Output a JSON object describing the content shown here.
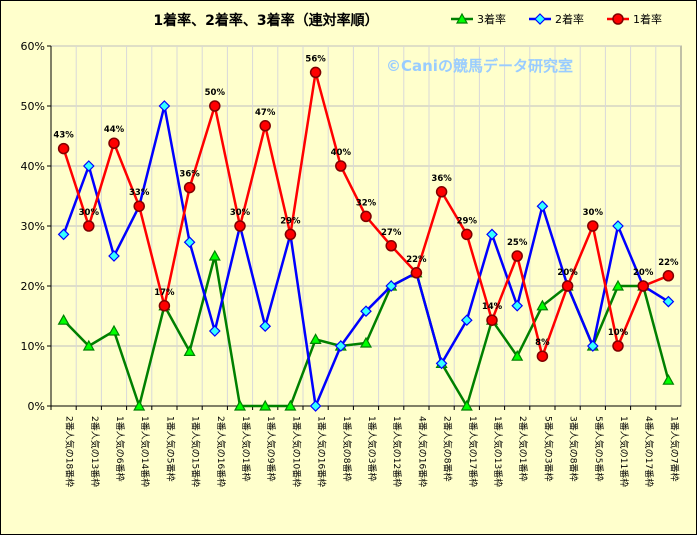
{
  "chart_data": {
    "type": "line",
    "title": "1着率、2着率、3着率（連対率順）",
    "watermark": "©Caniの競馬データ研究室",
    "ylim": [
      0,
      60
    ],
    "yticks": [
      "0%",
      "10%",
      "20%",
      "30%",
      "40%",
      "50%",
      "60%"
    ],
    "grid": true,
    "legend_position": "top-right",
    "categories": [
      "2番人気の18番枠",
      "2番人気の13番枠",
      "1番人気の6番枠",
      "1番人気の14番枠",
      "1番人気の5番枠",
      "1番人気の15番枠",
      "2番人気の16番枠",
      "1番人気の1番枠",
      "1番人気の9番枠",
      "1番人気の10番枠",
      "1番人気の16番枠",
      "1番人気の8番枠",
      "1番人気の3番枠",
      "1番人気の12番枠",
      "4番人気の16番枠",
      "2番人気の8番枠",
      "1番人気の17番枠",
      "1番人気の13番枠",
      "2番人気の1番枠",
      "5番人気の3番枠",
      "3番人気の8番枠",
      "5番人気の5番枠",
      "1番人気の11番枠",
      "4番人気の17番枠",
      "1番人気の7番枠"
    ],
    "series": [
      {
        "name": "3着率",
        "color": "#008000",
        "marker_color": "#00ff00",
        "marker": "triangle",
        "values": [
          14.3,
          10,
          12.5,
          0,
          16.7,
          9.1,
          25,
          0,
          0,
          0,
          11.1,
          10,
          10.5,
          20,
          22.2,
          7.1,
          0,
          14.3,
          8.3,
          16.7,
          20,
          10,
          20,
          20,
          4.3
        ]
      },
      {
        "name": "2着率",
        "color": "#0000ff",
        "marker_color": "#33ffff",
        "marker": "diamond",
        "values": [
          28.6,
          40,
          25,
          33.3,
          50,
          27.3,
          12.5,
          30,
          13.3,
          28.6,
          0,
          10,
          15.8,
          20,
          22.2,
          7.1,
          14.3,
          28.6,
          16.7,
          33.3,
          20,
          10,
          30,
          20,
          17.4
        ]
      },
      {
        "name": "1着率",
        "color": "#ff0000",
        "marker_color": "#ff0000",
        "marker": "circle",
        "values": [
          42.9,
          30,
          43.8,
          33.3,
          16.7,
          36.4,
          50,
          30,
          46.7,
          28.6,
          55.6,
          40,
          31.6,
          26.7,
          22.2,
          35.7,
          28.6,
          14.3,
          25,
          8.3,
          20,
          30,
          10,
          20,
          21.7
        ],
        "labels": [
          "43%",
          "30%",
          "44%",
          "33%",
          "17%",
          "36%",
          "50%",
          "30%",
          "47%",
          "29%",
          "56%",
          "40%",
          "32%",
          "27%",
          "22%",
          "36%",
          "29%",
          "14%",
          "25%",
          "8%",
          "20%",
          "30%",
          "10%",
          "20%",
          "22%"
        ]
      }
    ]
  }
}
